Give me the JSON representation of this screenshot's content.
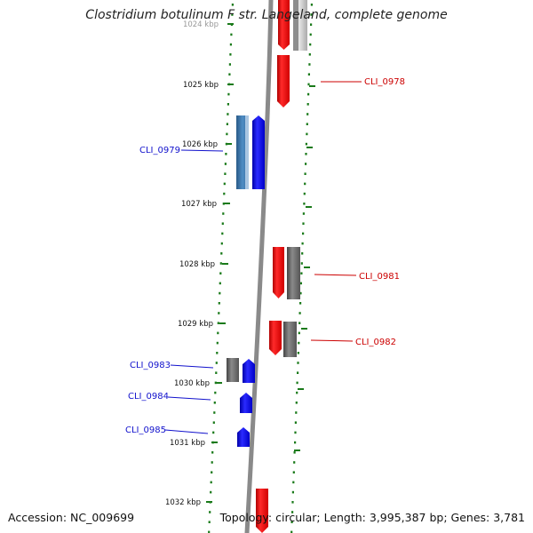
{
  "title": "Clostridium botulinum F str. Langeland, complete genome",
  "footer": {
    "accession": "Accession: NC_009699",
    "summary": "Topology: circular; Length: 3,995,387 bp; Genes: 3,781"
  },
  "colors": {
    "backbone": "#8a8a8a",
    "ticks": "#1a7a1a",
    "forward_gene": "#ee1111",
    "reverse_gene": "#1111ee",
    "reverse_label": "#1111cc",
    "forward_label": "#cc0000",
    "rna_gene": "#666666",
    "rna_gene_light": "#b8b8b8"
  },
  "scale": {
    "ticks": [
      {
        "label": "1024 kbp"
      },
      {
        "label": "1025 kbp"
      },
      {
        "label": "1026 kbp"
      },
      {
        "label": "1027 kbp"
      },
      {
        "label": "1028 kbp"
      },
      {
        "label": "1029 kbp"
      },
      {
        "label": "1030 kbp"
      },
      {
        "label": "1031 kbp"
      },
      {
        "label": "1032 kbp"
      }
    ]
  },
  "labels": {
    "cli_0978": "CLI_0978",
    "cli_0979": "CLI_0979",
    "cli_0981": "CLI_0981",
    "cli_0982": "CLI_0982",
    "cli_0983": "CLI_0983",
    "cli_0984": "CLI_0984",
    "cli_0985": "CLI_0985"
  }
}
